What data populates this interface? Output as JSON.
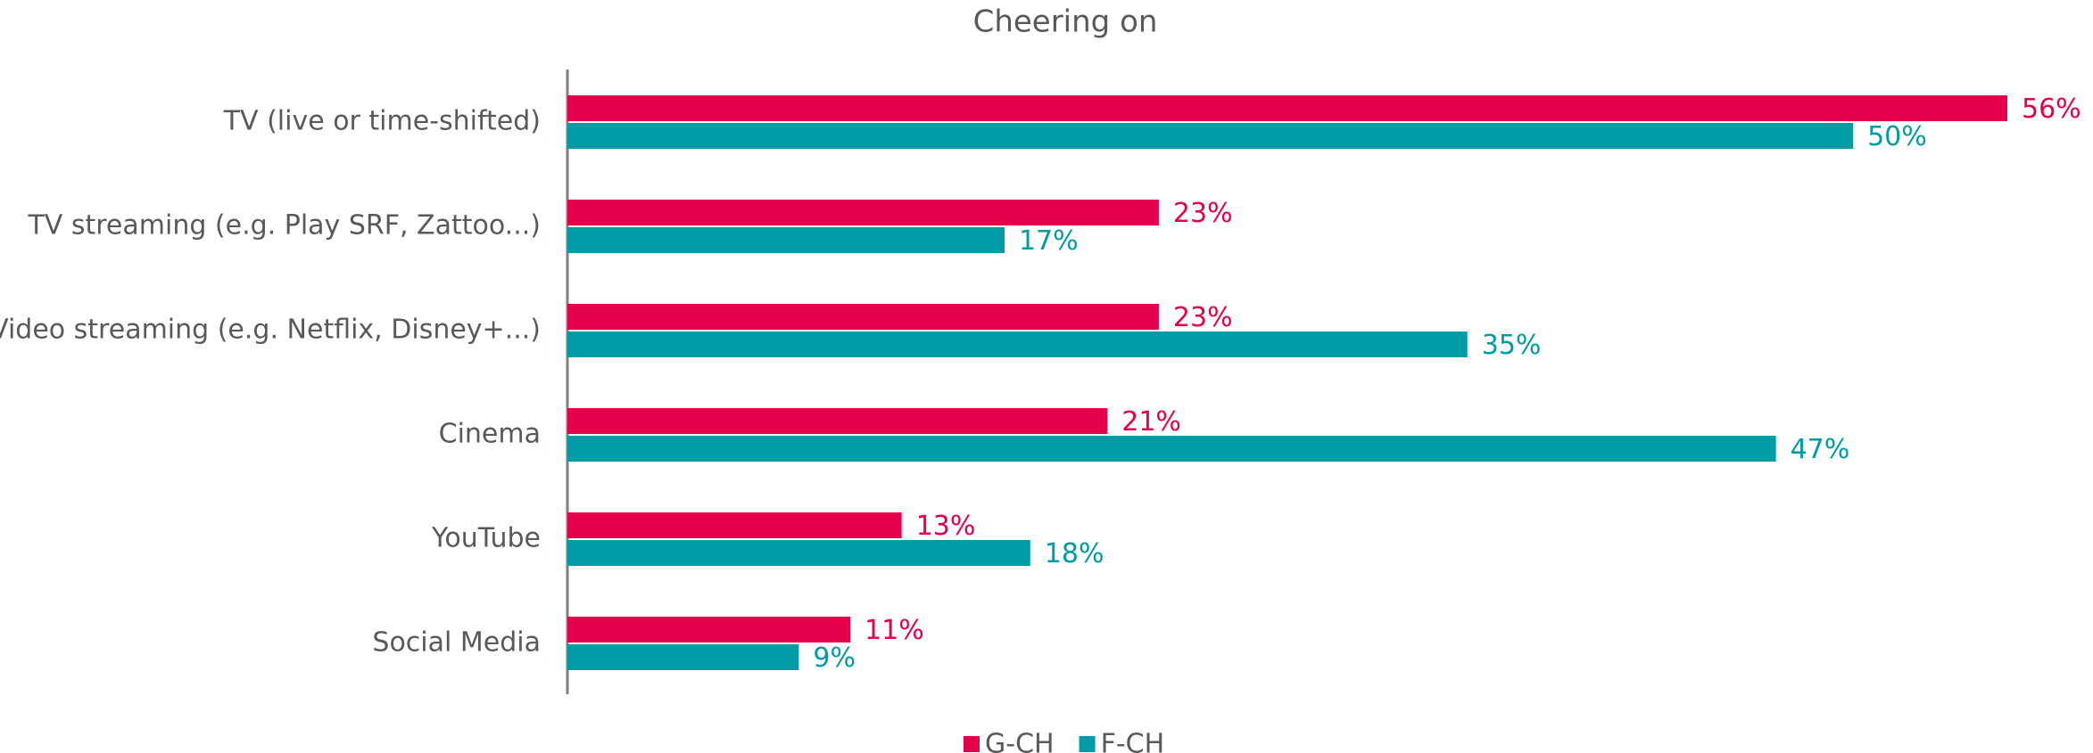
{
  "chart_data": {
    "type": "hbar",
    "title": "Cheering on",
    "categories": [
      "TV (live or time-shifted)",
      "TV streaming (e.g. Play SRF, Zattoo...)",
      "Video streaming (e.g. Netflix, Disney+...)",
      "Cinema",
      "YouTube",
      "Social Media"
    ],
    "series": [
      {
        "name": "G-CH",
        "color": "#e4004b",
        "values": [
          56,
          23,
          23,
          21,
          13,
          11
        ],
        "value_labels": [
          "56%",
          "23%",
          "23%",
          "21%",
          "13%",
          "11%"
        ]
      },
      {
        "name": "F-CH",
        "color": "#009ca6",
        "values": [
          50,
          17,
          35,
          47,
          18,
          9
        ],
        "value_labels": [
          "50%",
          "17%",
          "35%",
          "47%",
          "18%",
          "9%"
        ]
      }
    ]
  }
}
